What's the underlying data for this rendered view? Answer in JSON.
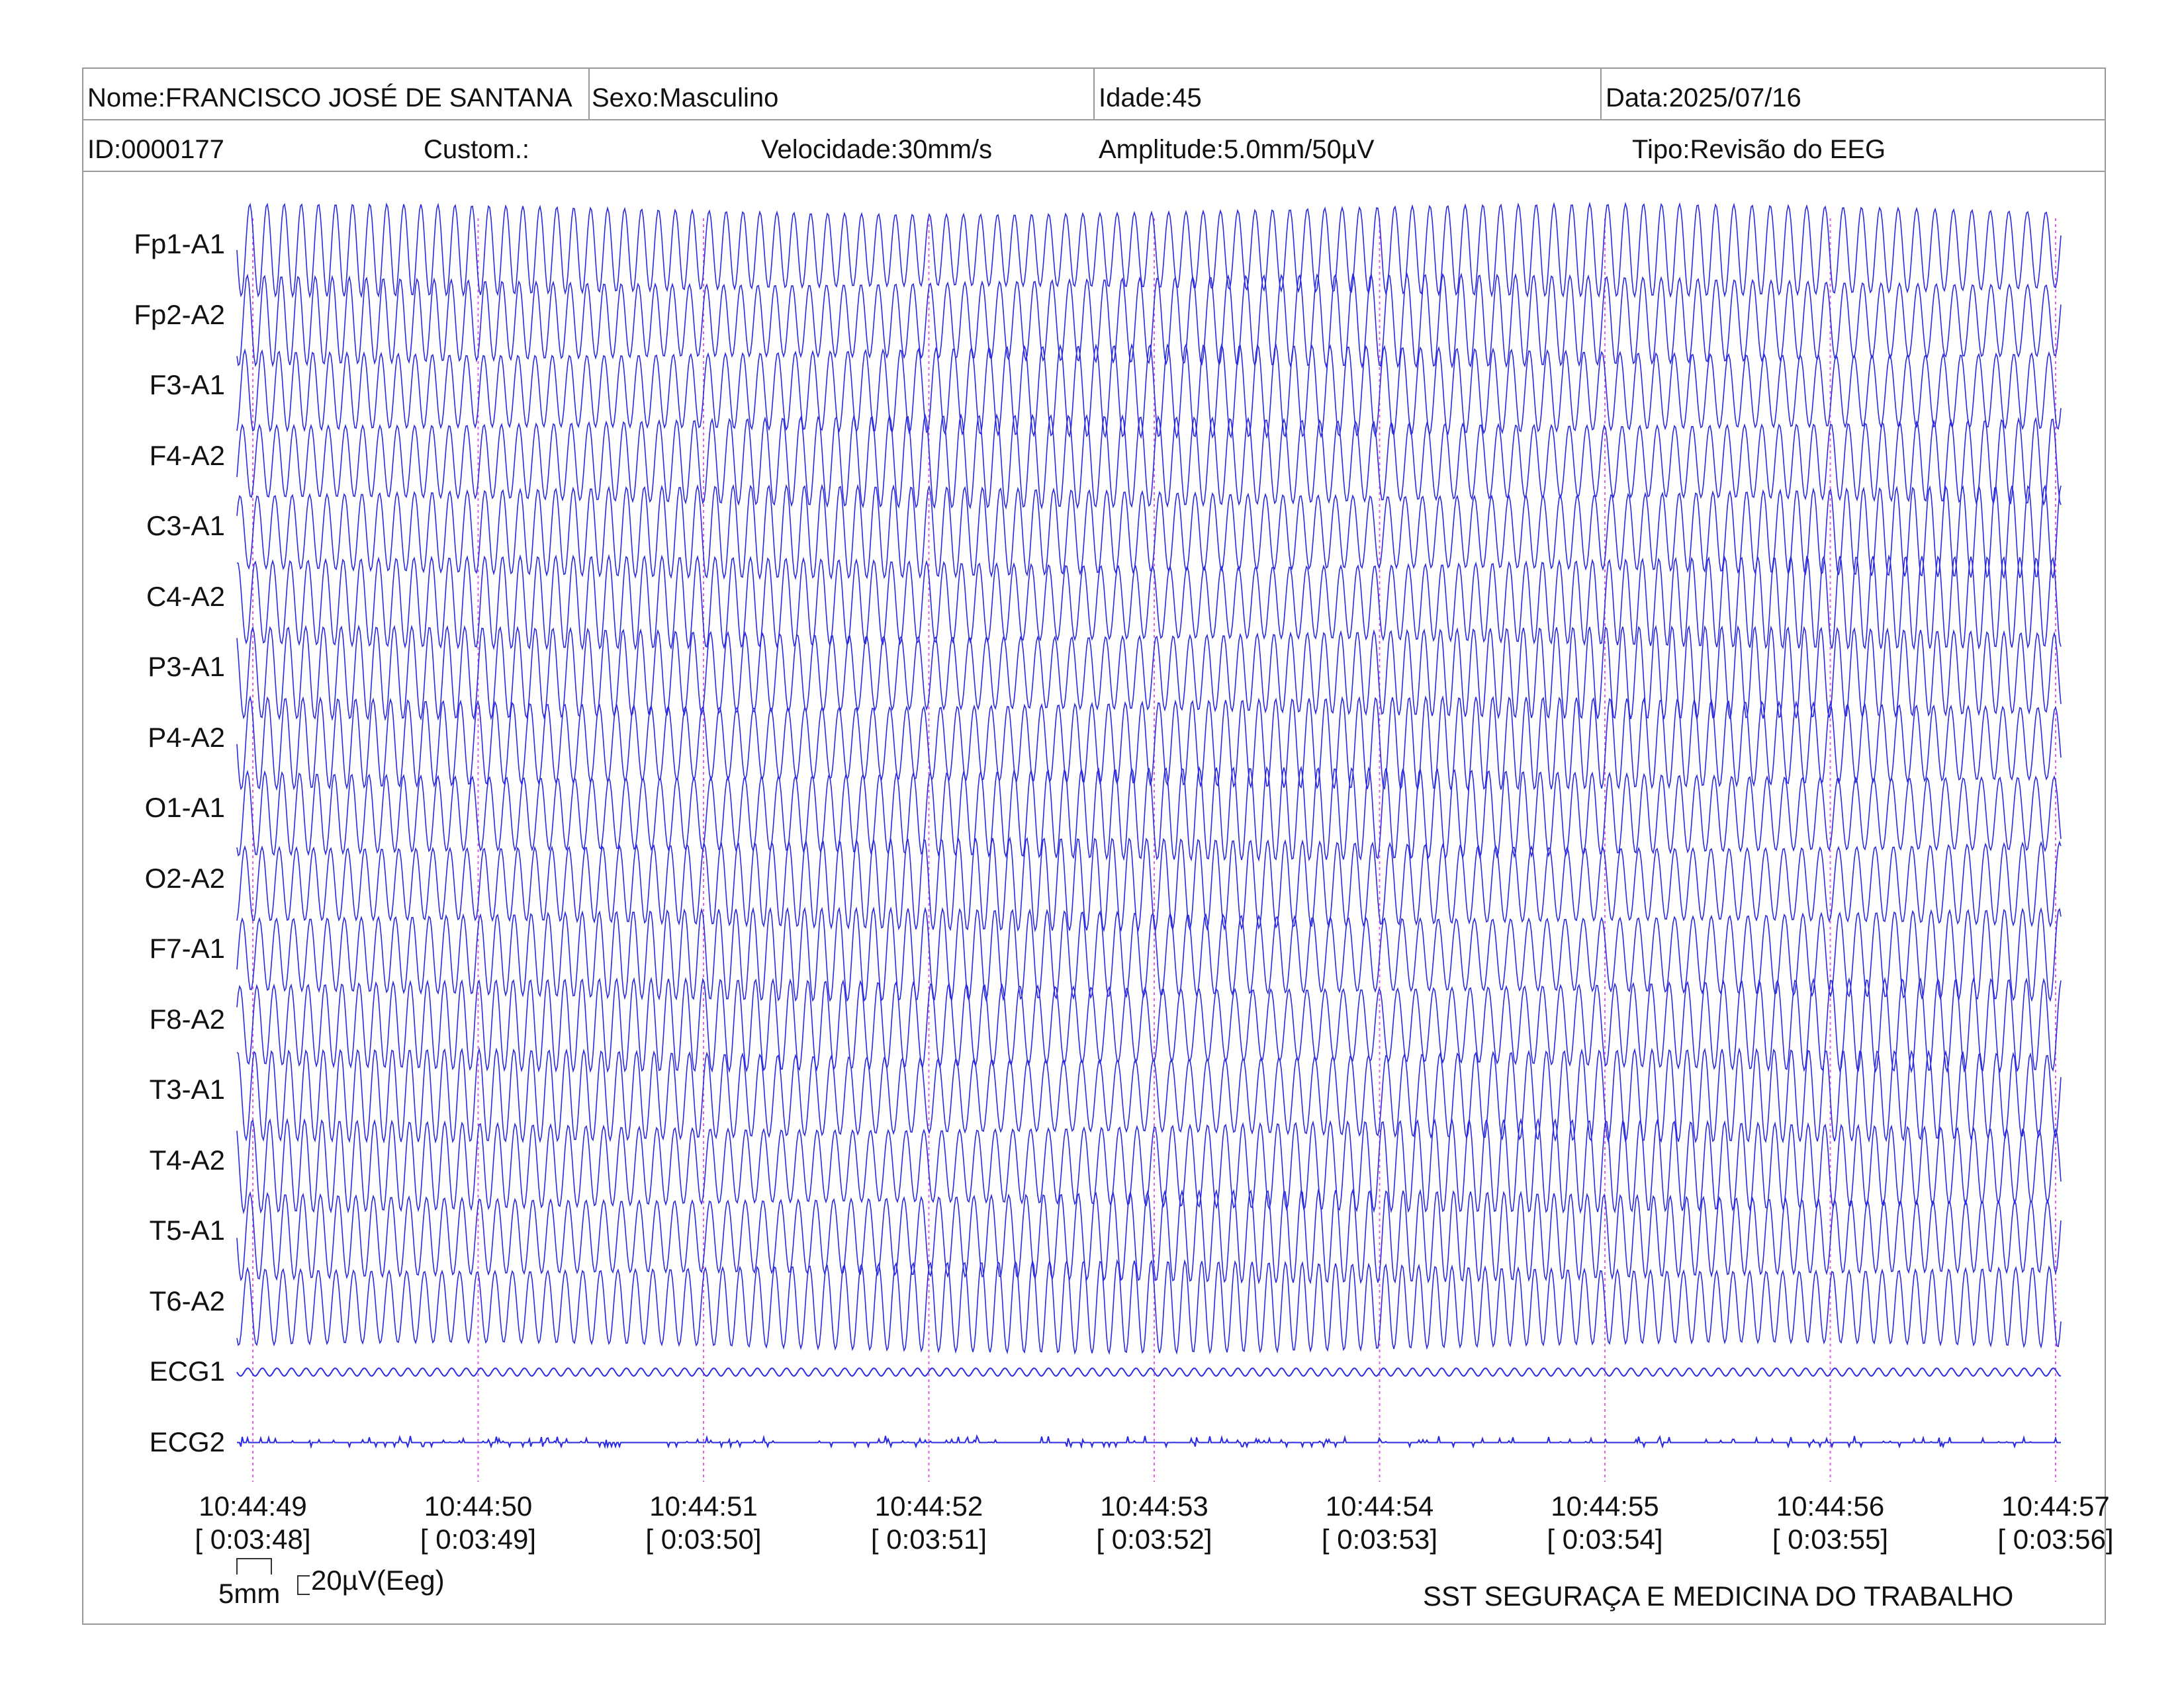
{
  "header": {
    "name": "Nome:FRANCISCO JOSÉ DE SANTANA",
    "sex": "Sexo:Masculino",
    "age": "Idade:45",
    "date": "Data:2025/07/16",
    "id": "ID:0000177",
    "custom": "Custom.:",
    "speed": "Velocidade:30mm/s",
    "amplitude": "Amplitude:5.0mm/50µV",
    "type": "Tipo:Revisão do EEG"
  },
  "scale": {
    "time_label": "5mm",
    "amp_label": "20µV(Eeg)"
  },
  "footer": "SST SEGURAÇA E MEDICINA DO TRABALHO",
  "colors": {
    "trace": "#2a2ae0",
    "marker": "#e060e0",
    "frame": "#9a9a9a"
  },
  "chart_data": {
    "type": "line",
    "title": "",
    "channels": [
      "Fp1-A1",
      "Fp2-A2",
      "F3-A1",
      "F4-A2",
      "C3-A1",
      "C4-A2",
      "P3-A1",
      "P4-A2",
      "O1-A1",
      "O2-A2",
      "F7-A1",
      "F8-A2",
      "T3-A1",
      "T4-A2",
      "T5-A1",
      "T6-A2",
      "ECG1",
      "ECG2"
    ],
    "time_ticks": [
      {
        "clock": "10:44:49",
        "elapsed": "[ 0:03:48]"
      },
      {
        "clock": "10:44:50",
        "elapsed": "[ 0:03:49]"
      },
      {
        "clock": "10:44:51",
        "elapsed": "[ 0:03:50]"
      },
      {
        "clock": "10:44:52",
        "elapsed": "[ 0:03:51]"
      },
      {
        "clock": "10:44:53",
        "elapsed": "[ 0:03:52]"
      },
      {
        "clock": "10:44:54",
        "elapsed": "[ 0:03:53]"
      },
      {
        "clock": "10:44:55",
        "elapsed": "[ 0:03:54]"
      },
      {
        "clock": "10:44:56",
        "elapsed": "[ 0:03:55]"
      },
      {
        "clock": "10:44:57",
        "elapsed": "[ 0:03:56]"
      }
    ],
    "speed_mm_per_s": 30,
    "sensitivity": "5.0mm/50µV",
    "eeg_waveform": "high-amplitude sinusoidal oscillation (~13 cycles/s) on all EEG channels",
    "ecg_waveform": "low-amplitude ripple (ECG1), near-flat with small spikes (ECG2)"
  }
}
